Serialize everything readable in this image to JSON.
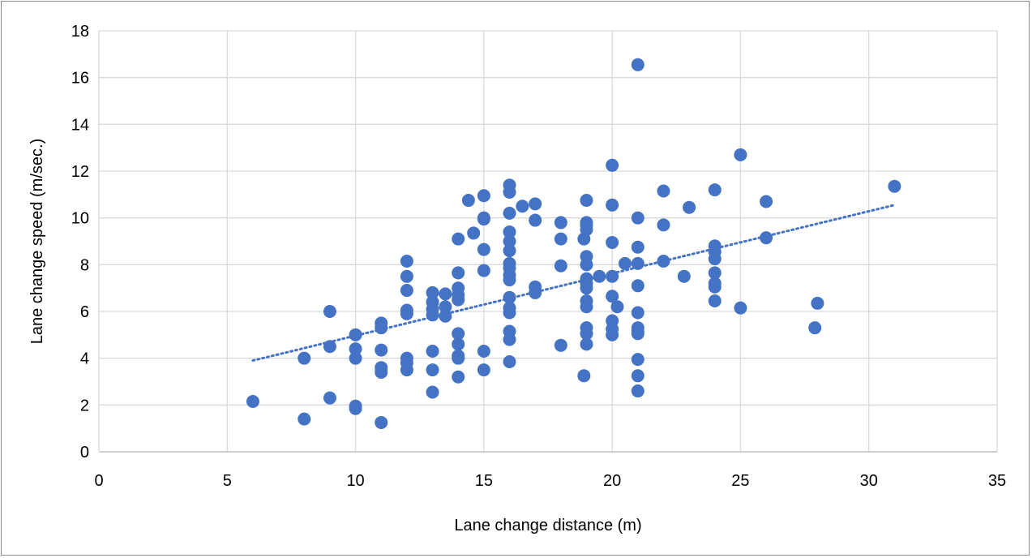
{
  "chart_data": {
    "type": "scatter",
    "title": "",
    "xlabel": "Lane change distance (m)",
    "ylabel": "Lane change speed (m/sec.)",
    "xlim": [
      0,
      35
    ],
    "ylim": [
      0,
      18
    ],
    "x_ticks": [
      0,
      5,
      10,
      15,
      20,
      25,
      30,
      35
    ],
    "y_ticks": [
      0,
      2,
      4,
      6,
      8,
      10,
      12,
      14,
      16,
      18
    ],
    "grid": true,
    "legend": "none",
    "marker_color": "#4472c4",
    "trendline": {
      "type": "linear",
      "style": "dotted",
      "color": "#4472c4",
      "x": [
        6,
        31
      ],
      "y": [
        3.9,
        10.55
      ]
    },
    "series": [
      {
        "points": [
          [
            6,
            2.15
          ],
          [
            8,
            1.4
          ],
          [
            8,
            4.0
          ],
          [
            9,
            2.3
          ],
          [
            9,
            4.5
          ],
          [
            9,
            6.0
          ],
          [
            10,
            1.85
          ],
          [
            10,
            1.95
          ],
          [
            10,
            4.0
          ],
          [
            10,
            4.4
          ],
          [
            10,
            5.0
          ],
          [
            11,
            1.25
          ],
          [
            11,
            3.4
          ],
          [
            11,
            3.6
          ],
          [
            11,
            4.35
          ],
          [
            11,
            5.3
          ],
          [
            11,
            5.5
          ],
          [
            12,
            3.5
          ],
          [
            12,
            3.8
          ],
          [
            12,
            4.0
          ],
          [
            12,
            5.9
          ],
          [
            12,
            6.05
          ],
          [
            12,
            6.9
          ],
          [
            12,
            7.5
          ],
          [
            12,
            8.15
          ],
          [
            13,
            2.55
          ],
          [
            13,
            3.5
          ],
          [
            13,
            4.3
          ],
          [
            13,
            5.85
          ],
          [
            13,
            6.1
          ],
          [
            13,
            6.4
          ],
          [
            13,
            6.8
          ],
          [
            13.5,
            5.8
          ],
          [
            13.5,
            6.2
          ],
          [
            13.5,
            6.75
          ],
          [
            14,
            3.2
          ],
          [
            14,
            4.0
          ],
          [
            14,
            4.1
          ],
          [
            14,
            4.6
          ],
          [
            14,
            5.05
          ],
          [
            14,
            6.5
          ],
          [
            14,
            6.7
          ],
          [
            14,
            7.0
          ],
          [
            14,
            7.65
          ],
          [
            14,
            9.1
          ],
          [
            14.4,
            10.75
          ],
          [
            14.6,
            9.35
          ],
          [
            15,
            3.5
          ],
          [
            15,
            4.3
          ],
          [
            15,
            7.75
          ],
          [
            15,
            8.65
          ],
          [
            15,
            9.95
          ],
          [
            15,
            10.0
          ],
          [
            15,
            10.95
          ],
          [
            16,
            3.85
          ],
          [
            16,
            4.8
          ],
          [
            16,
            5.15
          ],
          [
            16,
            5.95
          ],
          [
            16,
            6.15
          ],
          [
            16,
            6.6
          ],
          [
            16,
            7.35
          ],
          [
            16,
            7.55
          ],
          [
            16,
            7.85
          ],
          [
            16,
            8.05
          ],
          [
            16,
            8.6
          ],
          [
            16,
            9.0
          ],
          [
            16,
            9.4
          ],
          [
            16,
            10.2
          ],
          [
            16,
            11.1
          ],
          [
            16,
            11.4
          ],
          [
            16.5,
            10.5
          ],
          [
            17,
            6.8
          ],
          [
            17,
            7.05
          ],
          [
            17,
            9.9
          ],
          [
            17,
            10.6
          ],
          [
            18,
            4.55
          ],
          [
            18,
            7.95
          ],
          [
            18,
            9.1
          ],
          [
            18,
            9.8
          ],
          [
            18.9,
            3.25
          ],
          [
            18.9,
            9.1
          ],
          [
            19,
            4.6
          ],
          [
            19,
            5.05
          ],
          [
            19,
            5.3
          ],
          [
            19,
            6.2
          ],
          [
            19,
            6.45
          ],
          [
            19,
            7.0
          ],
          [
            19,
            7.2
          ],
          [
            19,
            7.4
          ],
          [
            19,
            8.0
          ],
          [
            19,
            8.35
          ],
          [
            19,
            9.5
          ],
          [
            19,
            9.7
          ],
          [
            19,
            9.8
          ],
          [
            19,
            10.75
          ],
          [
            19.5,
            7.5
          ],
          [
            20,
            5.0
          ],
          [
            20,
            5.25
          ],
          [
            20,
            5.6
          ],
          [
            20,
            6.65
          ],
          [
            20,
            7.5
          ],
          [
            20,
            8.95
          ],
          [
            20,
            10.55
          ],
          [
            20,
            12.25
          ],
          [
            20.2,
            6.2
          ],
          [
            20.5,
            8.05
          ],
          [
            21,
            2.6
          ],
          [
            21,
            3.25
          ],
          [
            21,
            3.95
          ],
          [
            21,
            5.05
          ],
          [
            21,
            5.15
          ],
          [
            21,
            5.3
          ],
          [
            21,
            5.95
          ],
          [
            21,
            7.1
          ],
          [
            21,
            8.05
          ],
          [
            21,
            8.75
          ],
          [
            21,
            10.0
          ],
          [
            21,
            16.55
          ],
          [
            22,
            8.15
          ],
          [
            22,
            9.7
          ],
          [
            22,
            11.15
          ],
          [
            22.8,
            7.5
          ],
          [
            23,
            10.45
          ],
          [
            24,
            6.45
          ],
          [
            24,
            7.05
          ],
          [
            24,
            7.2
          ],
          [
            24,
            7.65
          ],
          [
            24,
            8.25
          ],
          [
            24,
            8.55
          ],
          [
            24,
            8.8
          ],
          [
            24,
            11.2
          ],
          [
            25,
            6.15
          ],
          [
            25,
            12.7
          ],
          [
            26,
            9.15
          ],
          [
            26,
            10.7
          ],
          [
            27.9,
            5.3
          ],
          [
            28,
            6.35
          ],
          [
            31,
            11.35
          ]
        ]
      }
    ]
  }
}
